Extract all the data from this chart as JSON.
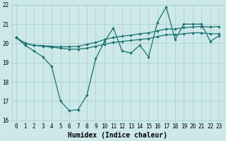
{
  "xlabel": "Humidex (Indice chaleur)",
  "background_color": "#cce8e8",
  "line_color": "#1a7070",
  "grid_color": "#aacccc",
  "x_values": [
    0,
    1,
    2,
    3,
    4,
    5,
    6,
    7,
    8,
    9,
    10,
    11,
    12,
    13,
    14,
    15,
    16,
    17,
    18,
    19,
    20,
    21,
    22,
    23
  ],
  "line1": [
    20.3,
    19.9,
    19.6,
    19.3,
    18.8,
    17.0,
    16.5,
    16.55,
    17.3,
    19.2,
    20.1,
    20.8,
    19.6,
    19.5,
    19.9,
    19.3,
    21.1,
    21.9,
    20.2,
    21.0,
    21.0,
    21.0,
    20.1,
    20.4
  ],
  "line2": [
    20.3,
    20.0,
    19.9,
    19.85,
    19.8,
    19.75,
    19.7,
    19.7,
    19.75,
    19.85,
    19.95,
    20.05,
    20.1,
    20.15,
    20.2,
    20.25,
    20.35,
    20.45,
    20.45,
    20.5,
    20.55,
    20.55,
    20.5,
    20.5
  ],
  "line3": [
    20.3,
    20.0,
    19.9,
    19.88,
    19.85,
    19.82,
    19.82,
    19.85,
    19.95,
    20.05,
    20.2,
    20.3,
    20.38,
    20.42,
    20.5,
    20.55,
    20.65,
    20.75,
    20.75,
    20.82,
    20.85,
    20.88,
    20.85,
    20.88
  ],
  "ylim": [
    16,
    22
  ],
  "xlim": [
    -0.5,
    23.5
  ],
  "yticks": [
    16,
    17,
    18,
    19,
    20,
    21,
    22
  ],
  "xticks": [
    0,
    1,
    2,
    3,
    4,
    5,
    6,
    7,
    8,
    9,
    10,
    11,
    12,
    13,
    14,
    15,
    16,
    17,
    18,
    19,
    20,
    21,
    22,
    23
  ],
  "tick_fontsize": 5.5,
  "xlabel_fontsize": 7,
  "ylabel_fontsize": 6,
  "marker_size": 2.2,
  "line_width": 0.9
}
